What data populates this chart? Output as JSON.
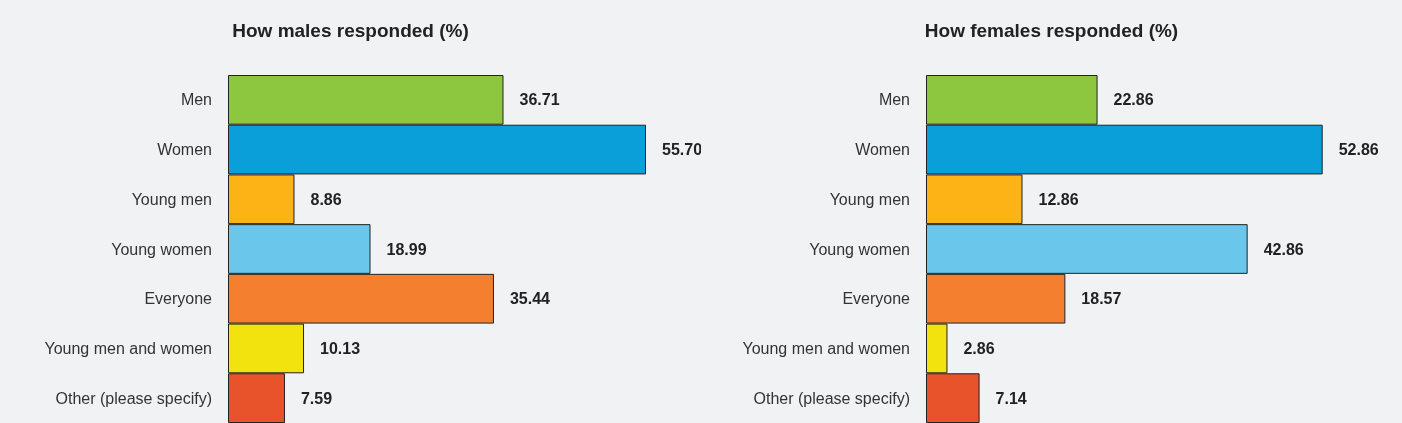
{
  "chart_data": [
    {
      "type": "bar",
      "orientation": "horizontal",
      "title": "How males responded (%)",
      "categories": [
        "Men",
        "Women",
        "Young men",
        "Young women",
        "Everyone",
        "Young men and women",
        "Other (please specify)"
      ],
      "values": [
        36.71,
        55.7,
        8.86,
        18.99,
        35.44,
        10.13,
        7.59
      ],
      "value_labels": [
        "36.71",
        "55.70",
        "8.86",
        "18.99",
        "35.44",
        "10.13",
        "7.59"
      ],
      "colors": [
        "#8dc63f",
        "#0a9fd8",
        "#fbb316",
        "#6ac6ea",
        "#f47f2e",
        "#f2e30f",
        "#e8532b"
      ]
    },
    {
      "type": "bar",
      "orientation": "horizontal",
      "title": "How females responded (%)",
      "categories": [
        "Men",
        "Women",
        "Young men",
        "Young women",
        "Everyone",
        "Young men and women",
        "Other (please specify)"
      ],
      "values": [
        22.86,
        52.86,
        12.86,
        42.86,
        18.57,
        2.86,
        7.14
      ],
      "value_labels": [
        "22.86",
        "52.86",
        "12.86",
        "42.86",
        "18.57",
        "2.86",
        "7.14"
      ],
      "colors": [
        "#8dc63f",
        "#0a9fd8",
        "#fbb316",
        "#6ac6ea",
        "#f47f2e",
        "#f2e30f",
        "#e8532b"
      ]
    }
  ]
}
